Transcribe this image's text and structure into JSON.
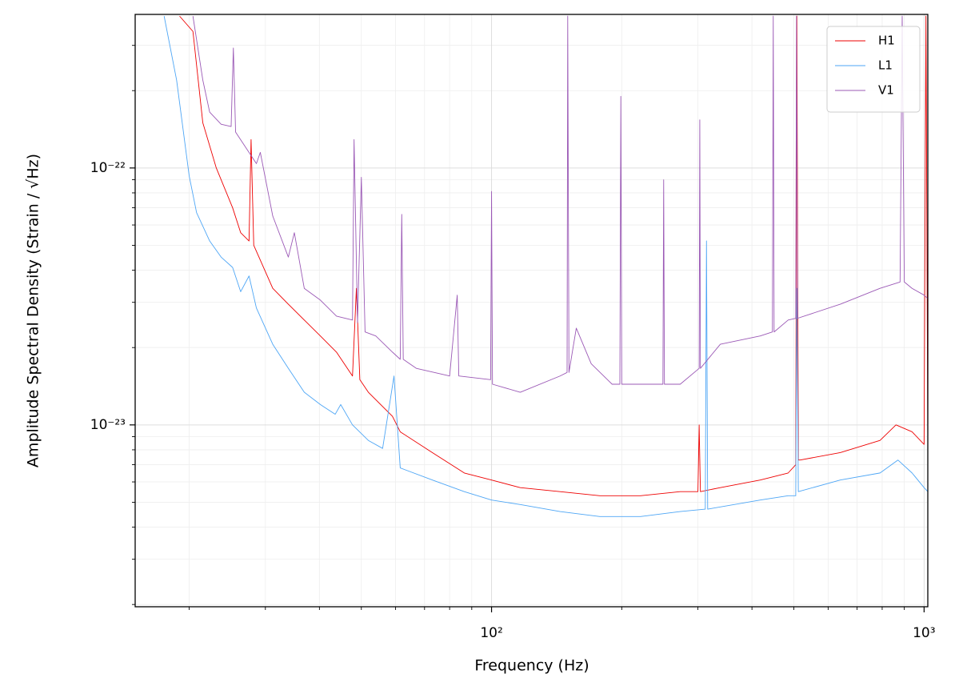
{
  "chart_data": {
    "type": "line",
    "xlabel": "Frequency (Hz)",
    "ylabel": "Amplitude Spectral Density (Strain / √Hz)",
    "xscale": "log",
    "yscale": "log",
    "xlim": [
      15,
      1020
    ],
    "ylim": [
      1.96e-24,
      3.96e-22
    ],
    "xticks": [
      {
        "value": 100,
        "label": "10²"
      },
      {
        "value": 1000,
        "label": "10³"
      }
    ],
    "yticks": [
      {
        "value": 1e-23,
        "label": "10⁻²³"
      },
      {
        "value": 1e-22,
        "label": "10⁻²²"
      }
    ],
    "xminorticks": [
      20,
      30,
      40,
      50,
      60,
      70,
      80,
      90,
      200,
      300,
      400,
      500,
      600,
      700,
      800,
      900
    ],
    "yminorticks": [
      2e-24,
      3e-24,
      4e-24,
      5e-24,
      6e-24,
      7e-24,
      8e-24,
      9e-24,
      2e-23,
      3e-23,
      4e-23,
      5e-23,
      6e-23,
      7e-23,
      8e-23,
      9e-23,
      2e-22,
      3e-22
    ],
    "grid": true,
    "legend": "upper right",
    "series": [
      {
        "name": "H1",
        "color": "#ee0000",
        "x": [
          19,
          20.4,
          21.5,
          23.1,
          25.2,
          26.3,
          27.5,
          27.8,
          28.2,
          31.2,
          33.9,
          36.9,
          40.2,
          43.8,
          47.7,
          48.7,
          49.6,
          51.9,
          59,
          61.5,
          73,
          86.5,
          100,
          116.5,
          144,
          178,
          221,
          273,
          300,
          302,
          304,
          338,
          418,
          485,
          505,
          508,
          512,
          517,
          640,
          791,
          861,
          938,
          1000,
          1010,
          1020
        ],
        "values": [
          3.9e-22,
          3.4e-22,
          1.5e-22,
          1e-22,
          7e-23,
          5.6e-23,
          5.2e-23,
          1.29e-22,
          5e-23,
          3.4e-23,
          2.95e-23,
          2.56e-23,
          2.22e-23,
          1.92e-23,
          1.55e-23,
          3.4e-23,
          1.5e-23,
          1.34e-23,
          1.08e-23,
          9.4e-24,
          7.8e-24,
          6.5e-24,
          6.1e-24,
          5.7e-24,
          5.5e-24,
          5.3e-24,
          5.3e-24,
          5.5e-24,
          5.5e-24,
          1e-23,
          5.5e-24,
          5.7e-24,
          6.1e-24,
          6.5e-24,
          7e-24,
          3.9e-22,
          7.3e-24,
          7.3e-24,
          7.8e-24,
          8.7e-24,
          1e-23,
          9.4e-24,
          8.4e-24,
          3.9e-22,
          8.4e-24
        ]
      },
      {
        "name": "L1",
        "color": "#4ea6f5",
        "x": [
          17.5,
          18.7,
          20.0,
          20.8,
          22.3,
          23.7,
          25.2,
          26.3,
          27.5,
          28.6,
          31.2,
          33.9,
          36.9,
          40.2,
          43.5,
          44.8,
          47.7,
          51.9,
          56,
          59.5,
          61.5,
          73,
          86.5,
          100,
          116.5,
          144,
          178,
          221,
          273,
          312,
          314,
          316,
          418,
          485,
          505,
          508,
          512,
          640,
          791,
          870,
          938,
          1000,
          1020
        ],
        "values": [
          3.9e-22,
          2.2e-22,
          9.3e-23,
          6.7e-23,
          5.2e-23,
          4.5e-23,
          4.1e-23,
          3.3e-23,
          3.8e-23,
          2.85e-23,
          2.06e-23,
          1.66e-23,
          1.34e-23,
          1.2e-23,
          1.1e-23,
          1.2e-23,
          1e-23,
          8.7e-24,
          8.1e-24,
          1.55e-23,
          6.8e-24,
          6.1e-24,
          5.5e-24,
          5.1e-24,
          4.9e-24,
          4.6e-24,
          4.4e-24,
          4.4e-24,
          4.6e-24,
          4.7e-24,
          5.2e-23,
          4.7e-24,
          5.1e-24,
          5.3e-24,
          5.3e-24,
          3.4e-23,
          5.5e-24,
          6.1e-24,
          6.5e-24,
          7.3e-24,
          6.5e-24,
          5.7e-24,
          5.5e-24
        ]
      },
      {
        "name": "V1",
        "color": "#9b59b6",
        "x": [
          20.4,
          21.5,
          22.3,
          23.7,
          25.0,
          25.3,
          25.6,
          28.6,
          29.2,
          31.2,
          33.9,
          35.0,
          36.9,
          40.2,
          43.8,
          47.7,
          48.1,
          49.0,
          50.0,
          51,
          54,
          59,
          61.5,
          62,
          62.5,
          67,
          80,
          83.3,
          84,
          99.5,
          100,
          100.5,
          116.5,
          144,
          149.5,
          150,
          151,
          157,
          170,
          190,
          198,
          199,
          200,
          249,
          250,
          251,
          273,
          302,
          303,
          304,
          338,
          418,
          446,
          448,
          450,
          485,
          505,
          507,
          510,
          640,
          791,
          880,
          890,
          900,
          938,
          1000,
          1020
        ],
        "values": [
          3.9e-22,
          2.2e-22,
          1.65e-22,
          1.48e-22,
          1.45e-22,
          2.93e-22,
          1.38e-22,
          1.04e-22,
          1.15e-22,
          6.5e-23,
          4.5e-23,
          5.6e-23,
          3.4e-23,
          3.06e-23,
          2.65e-23,
          2.56e-23,
          1.29e-22,
          2.5e-23,
          9.2e-23,
          2.3e-23,
          2.22e-23,
          1.92e-23,
          1.8e-23,
          6.6e-23,
          1.8e-23,
          1.66e-23,
          1.55e-23,
          3.2e-23,
          1.55e-23,
          1.5e-23,
          8.1e-23,
          1.44e-23,
          1.34e-23,
          1.55e-23,
          1.6e-23,
          3.9e-22,
          1.6e-23,
          2.38e-23,
          1.73e-23,
          1.44e-23,
          1.44e-23,
          1.9e-22,
          1.44e-23,
          1.44e-23,
          9e-23,
          1.44e-23,
          1.44e-23,
          1.66e-23,
          1.54e-22,
          1.66e-23,
          2.06e-23,
          2.22e-23,
          2.3e-23,
          3.9e-22,
          2.3e-23,
          2.56e-23,
          2.6e-23,
          3.9e-22,
          2.6e-23,
          2.95e-23,
          3.4e-23,
          3.6e-23,
          3.9e-22,
          3.6e-23,
          3.4e-23,
          3.2e-23,
          3.1e-23
        ]
      }
    ]
  }
}
